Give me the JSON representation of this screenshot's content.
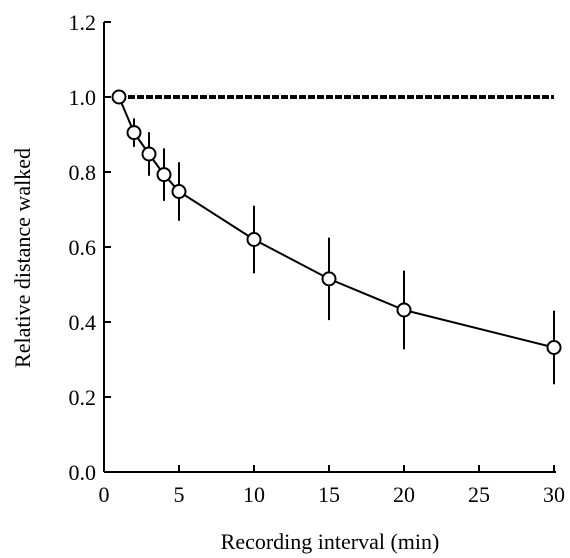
{
  "chart_data": {
    "type": "line",
    "title": "",
    "xlabel": "Recording interval (min)",
    "ylabel": "Relative distance walked",
    "xlim": [
      0,
      30
    ],
    "ylim": [
      0,
      1.2
    ],
    "x_ticks": [
      "0",
      "5",
      "10",
      "15",
      "20",
      "25",
      "30"
    ],
    "y_ticks": [
      "0.0",
      "0.2",
      "0.4",
      "0.6",
      "0.8",
      "1.0",
      "1.2"
    ],
    "grid": false,
    "reference_line": {
      "y": 1.0,
      "style": "dashed-thick"
    },
    "series": [
      {
        "x": [
          1,
          2,
          3,
          4,
          5,
          10,
          15,
          20,
          30
        ],
        "y": [
          1.0,
          0.905,
          0.848,
          0.793,
          0.748,
          0.62,
          0.515,
          0.432,
          0.332
        ],
        "err": [
          0.0,
          0.038,
          0.058,
          0.07,
          0.078,
          0.09,
          0.11,
          0.105,
          0.098
        ],
        "marker": "open-circle"
      }
    ]
  }
}
